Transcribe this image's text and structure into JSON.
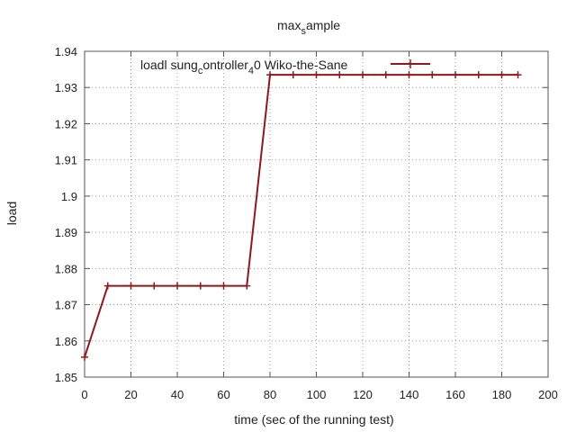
{
  "chart_data": {
    "type": "line",
    "title": "max",
    "title_sub": "s",
    "title_rest": "ample",
    "xlabel": "time (sec of the running test)",
    "ylabel": "load",
    "xlim": [
      0,
      200
    ],
    "ylim": [
      1.85,
      1.94
    ],
    "x_ticks": [
      "0",
      "20",
      "40",
      "60",
      "80",
      "100",
      "120",
      "140",
      "160",
      "180",
      "200"
    ],
    "y_ticks": [
      "1.85",
      "1.86",
      "1.87",
      "1.88",
      "1.89",
      "1.9",
      "1.91",
      "1.92",
      "1.93",
      "1.94"
    ],
    "grid": true,
    "legend_position": "top-right",
    "series": [
      {
        "name": "load",
        "name_main": "load",
        "name_b": "l sung",
        "name_sub": "c",
        "name_c": "ontroller",
        "name_sub2": "4",
        "name_d": "0 Wiko-the-Sane",
        "color": "#8b1a1a",
        "x": [
          0,
          10,
          20,
          30,
          40,
          50,
          60,
          70,
          80,
          90,
          100,
          110,
          120,
          130,
          140,
          150,
          160,
          170,
          180,
          187
        ],
        "y": [
          1.8555,
          1.8752,
          1.8752,
          1.8752,
          1.8752,
          1.8752,
          1.8752,
          1.8752,
          1.9335,
          1.9335,
          1.9335,
          1.9335,
          1.9335,
          1.9335,
          1.9335,
          1.9335,
          1.9335,
          1.9335,
          1.9335,
          1.9335
        ]
      }
    ]
  }
}
